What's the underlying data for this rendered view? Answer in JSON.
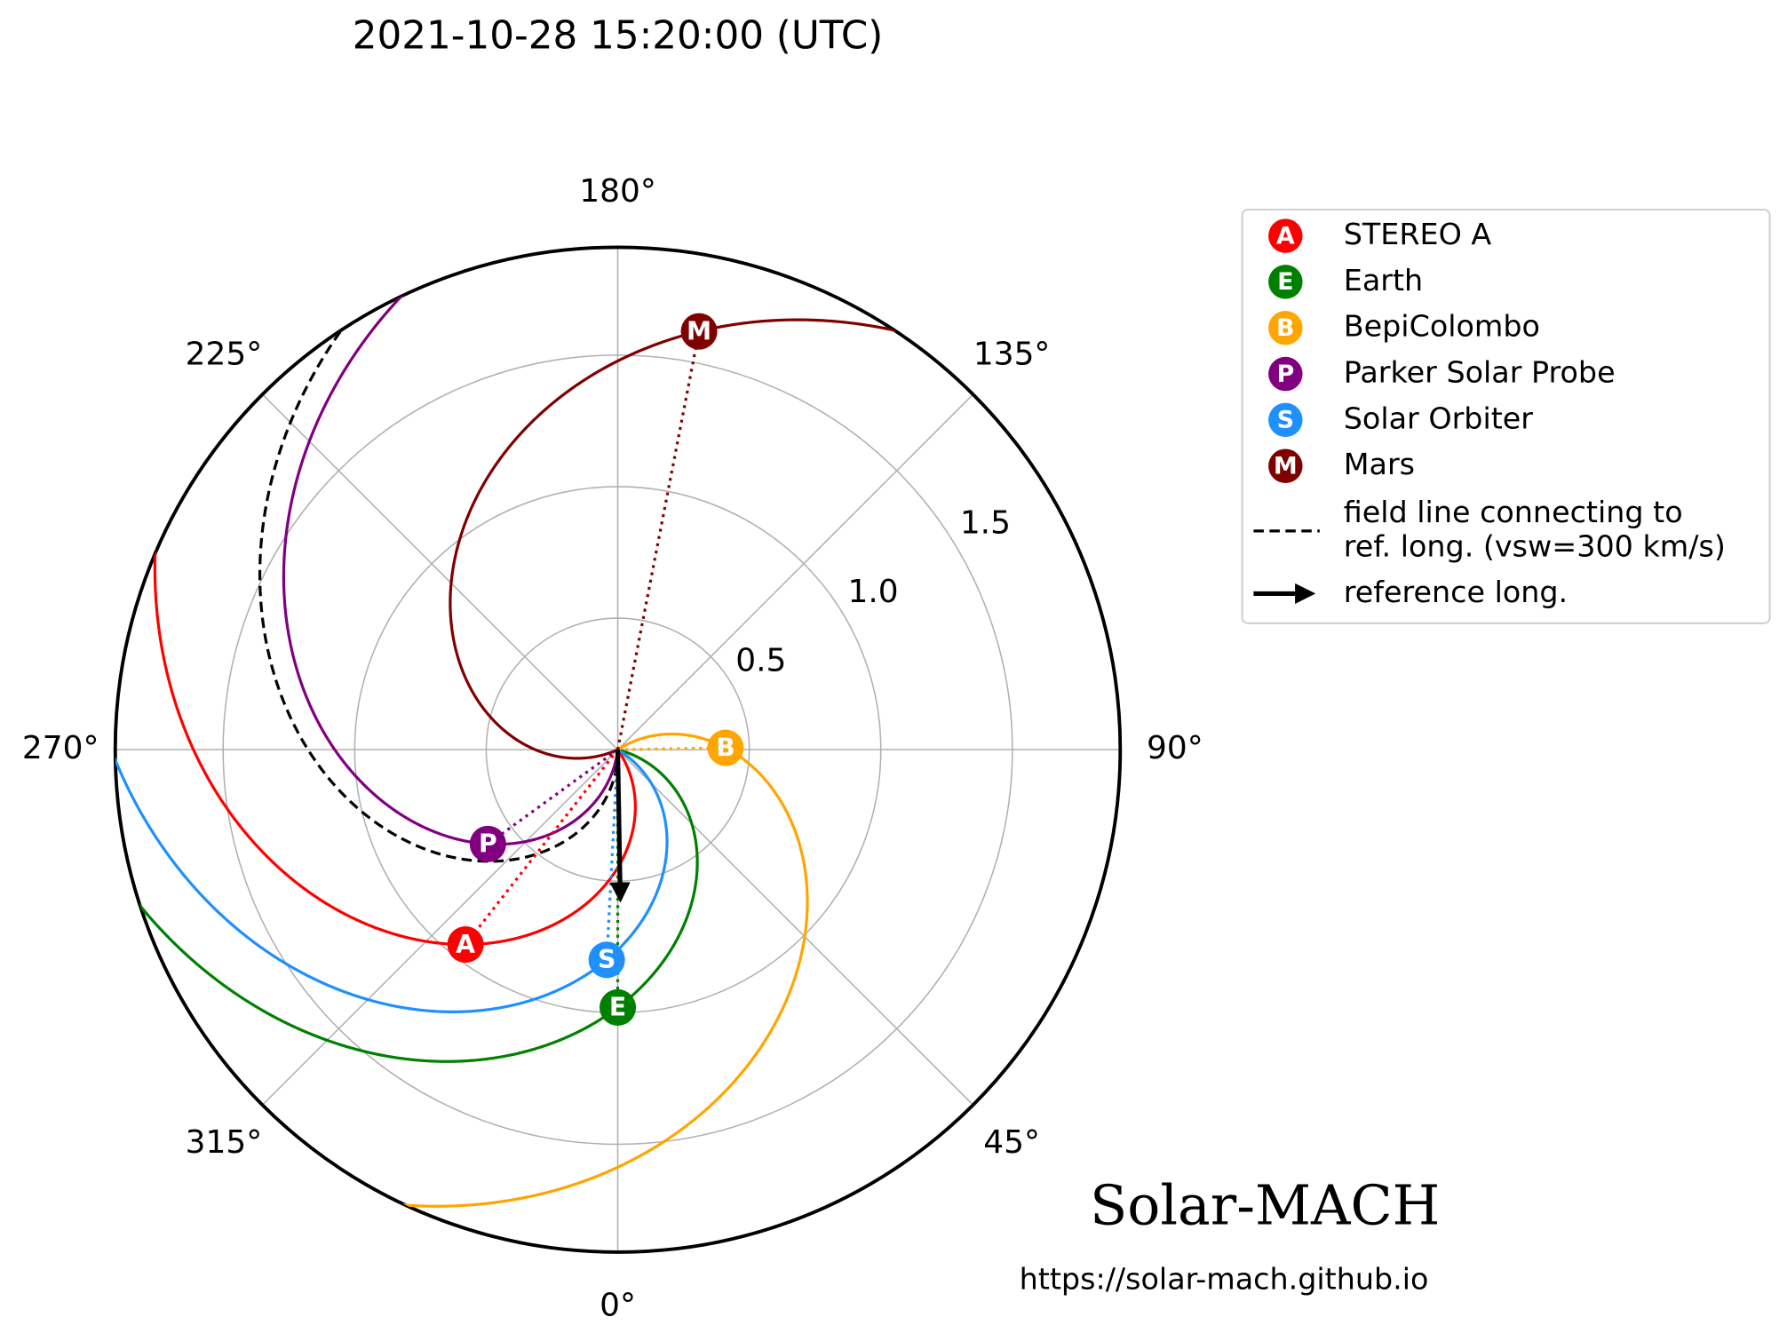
{
  "chart_data": {
    "type": "polar",
    "title": "2021-10-28 15:20:00 (UTC)",
    "ylim": [
      0,
      1.91
    ],
    "yticks": [
      0.5,
      {
        "value": 1,
        "label": "1.0"
      },
      1.5
    ],
    "xticks": [
      {
        "value": 0,
        "label": "0°"
      },
      {
        "value": 45,
        "label": "45°"
      },
      {
        "value": 90,
        "label": "90°"
      },
      {
        "value": 135,
        "label": "135°"
      },
      {
        "value": 180,
        "label": "180°"
      },
      {
        "value": 225,
        "label": "225°"
      },
      {
        "value": 270,
        "label": "270°"
      },
      {
        "value": 315,
        "label": "315°"
      }
    ],
    "grid": true,
    "series": [
      {
        "name": "STEREO A",
        "letter": "A",
        "color": "#ff0000",
        "r": 0.94,
        "lon": 322
      },
      {
        "name": "Earth",
        "letter": "E",
        "color": "#008000",
        "r": 0.98,
        "lon": 0
      },
      {
        "name": "BepiColombo",
        "letter": "B",
        "color": "#ffa500",
        "r": 0.41,
        "lon": 91
      },
      {
        "name": "Parker Solar Probe",
        "letter": "P",
        "color": "#800080",
        "r": 0.61,
        "lon": 306
      },
      {
        "name": "Solar Orbiter",
        "letter": "S",
        "color": "#1e90ff",
        "r": 0.8,
        "lon": 357
      },
      {
        "name": "Mars",
        "letter": "M",
        "color": "#800000",
        "r": 1.62,
        "lon": 169
      }
    ],
    "reference": {
      "label": "reference long.",
      "lon": 1
    },
    "field_line_label": [
      "field line connecting to",
      "ref. long. (vsw=300 km/s)"
    ],
    "watermark": "Solar-MACH",
    "url": "https://solar-mach.github.io"
  }
}
